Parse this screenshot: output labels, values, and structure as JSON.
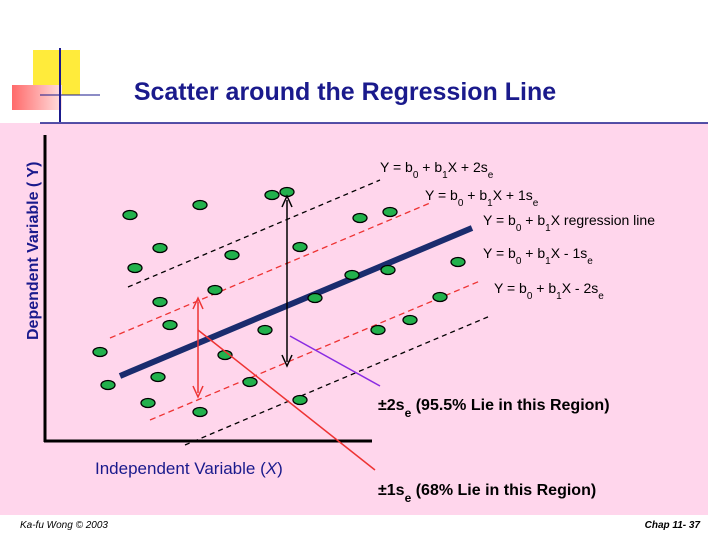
{
  "header": {
    "title": "Scatter around the Regression Line"
  },
  "axes": {
    "y_label": "Dependent Variable ( Y)",
    "x_label": [
      "Independent Variable  (",
      "X",
      ")"
    ]
  },
  "equations": [
    [
      "Y = b",
      "0",
      " + b",
      "1",
      "X + 2s",
      "e"
    ],
    [
      "Y = b",
      "0",
      " + b",
      "1",
      "X + 1s",
      "e"
    ],
    [
      "Y = b",
      "0",
      " + b",
      "1",
      "X  regression line"
    ],
    [
      "Y = b",
      "0",
      " + b",
      "1",
      "X - 1s",
      "e"
    ],
    [
      "Y = b",
      "0",
      " + b",
      "1",
      "X - 2s",
      "e"
    ]
  ],
  "regions": [
    [
      "±2s",
      "e",
      " (95.5% Lie in this Region)"
    ],
    [
      "±1s",
      "e",
      " (68% Lie in this Region)"
    ]
  ],
  "footer": {
    "author": "Ka-fu Wong © 2003",
    "page": "Chap 11- 37"
  }
}
